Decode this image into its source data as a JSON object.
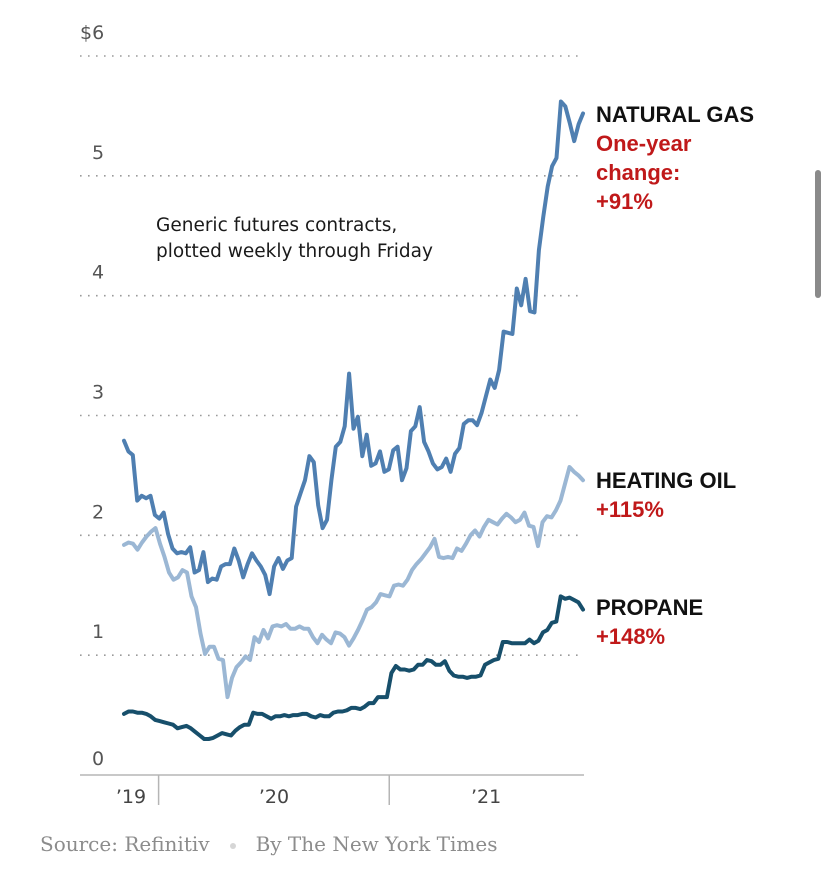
{
  "chart_data": {
    "type": "line",
    "title": "",
    "xlabel": "",
    "ylabel": "",
    "y_unit_prefix": "$",
    "ylim": [
      0,
      6
    ],
    "yticks": [
      0,
      1,
      2,
      3,
      4,
      5,
      6
    ],
    "ytick_labels": [
      "0",
      "1",
      "2",
      "3",
      "4",
      "5",
      "$6"
    ],
    "xlim": [
      2019.85,
      2021.84
    ],
    "xticks": [
      {
        "label": "’19",
        "start": 2019.85,
        "end": 2020.0
      },
      {
        "label": "’20",
        "start": 2020.0,
        "end": 2021.0
      },
      {
        "label": "’21",
        "start": 2021.0,
        "end": 2021.84
      }
    ],
    "grid": true,
    "annotation": [
      "Generic futures contracts,",
      "plotted weekly through Friday"
    ],
    "x_start": 2019.85,
    "x_step_years": 0.01923,
    "series": [
      {
        "name": "NATURAL GAS",
        "change_label": [
          "One-year",
          "change:",
          "+91%"
        ],
        "color": "#4f7fb1",
        "values": [
          2.79,
          2.7,
          2.67,
          2.29,
          2.33,
          2.31,
          2.33,
          2.17,
          2.14,
          2.19,
          2.01,
          1.89,
          1.85,
          1.86,
          1.85,
          1.9,
          1.69,
          1.71,
          1.86,
          1.61,
          1.64,
          1.63,
          1.74,
          1.76,
          1.76,
          1.89,
          1.79,
          1.65,
          1.76,
          1.85,
          1.79,
          1.74,
          1.67,
          1.51,
          1.74,
          1.81,
          1.72,
          1.79,
          1.81,
          2.24,
          2.35,
          2.46,
          2.66,
          2.61,
          2.25,
          2.06,
          2.13,
          2.46,
          2.74,
          2.78,
          2.91,
          3.35,
          2.89,
          2.99,
          2.66,
          2.84,
          2.58,
          2.6,
          2.7,
          2.53,
          2.55,
          2.71,
          2.74,
          2.46,
          2.56,
          2.87,
          2.91,
          3.07,
          2.78,
          2.7,
          2.6,
          2.55,
          2.57,
          2.64,
          2.53,
          2.68,
          2.73,
          2.93,
          2.96,
          2.96,
          2.92,
          3.02,
          3.16,
          3.3,
          3.23,
          3.38,
          3.7,
          3.69,
          3.68,
          4.06,
          3.92,
          4.14,
          3.87,
          3.86,
          4.38,
          4.66,
          4.91,
          5.08,
          5.15,
          5.62,
          5.58,
          5.44,
          5.29,
          5.43,
          5.52
        ]
      },
      {
        "name": "HEATING OIL",
        "change_label": [
          "+115%"
        ],
        "color": "#9bb7d4",
        "values": [
          1.92,
          1.94,
          1.93,
          1.88,
          1.94,
          1.99,
          2.03,
          2.06,
          1.93,
          1.82,
          1.69,
          1.63,
          1.65,
          1.71,
          1.69,
          1.49,
          1.4,
          1.18,
          1.01,
          1.07,
          1.07,
          0.97,
          0.96,
          0.65,
          0.81,
          0.9,
          0.94,
          0.99,
          0.96,
          1.15,
          1.11,
          1.21,
          1.14,
          1.24,
          1.25,
          1.24,
          1.26,
          1.22,
          1.22,
          1.24,
          1.22,
          1.22,
          1.15,
          1.1,
          1.17,
          1.13,
          1.1,
          1.19,
          1.18,
          1.15,
          1.08,
          1.14,
          1.21,
          1.29,
          1.38,
          1.4,
          1.44,
          1.51,
          1.5,
          1.49,
          1.58,
          1.59,
          1.58,
          1.63,
          1.71,
          1.76,
          1.8,
          1.85,
          1.9,
          1.97,
          1.82,
          1.81,
          1.82,
          1.81,
          1.89,
          1.87,
          1.93,
          2.0,
          2.04,
          1.99,
          2.07,
          2.13,
          2.11,
          2.09,
          2.14,
          2.18,
          2.15,
          2.11,
          2.13,
          2.19,
          2.08,
          2.07,
          1.91,
          2.11,
          2.16,
          2.15,
          2.21,
          2.29,
          2.43,
          2.57,
          2.53,
          2.5,
          2.46
        ]
      },
      {
        "name": "PROPANE",
        "change_label": [
          "+148%"
        ],
        "color": "#174f6b",
        "values": [
          0.51,
          0.53,
          0.53,
          0.52,
          0.52,
          0.51,
          0.49,
          0.46,
          0.45,
          0.44,
          0.43,
          0.42,
          0.39,
          0.4,
          0.41,
          0.39,
          0.36,
          0.33,
          0.3,
          0.3,
          0.31,
          0.33,
          0.35,
          0.34,
          0.33,
          0.37,
          0.4,
          0.42,
          0.42,
          0.52,
          0.51,
          0.51,
          0.49,
          0.47,
          0.49,
          0.49,
          0.5,
          0.49,
          0.5,
          0.5,
          0.51,
          0.51,
          0.49,
          0.48,
          0.5,
          0.49,
          0.49,
          0.52,
          0.53,
          0.53,
          0.54,
          0.56,
          0.56,
          0.55,
          0.57,
          0.6,
          0.6,
          0.65,
          0.65,
          0.65,
          0.85,
          0.91,
          0.88,
          0.88,
          0.87,
          0.88,
          0.92,
          0.92,
          0.96,
          0.95,
          0.92,
          0.92,
          0.95,
          0.87,
          0.83,
          0.82,
          0.82,
          0.81,
          0.82,
          0.82,
          0.83,
          0.92,
          0.94,
          0.96,
          0.97,
          1.11,
          1.11,
          1.1,
          1.1,
          1.1,
          1.1,
          1.13,
          1.1,
          1.12,
          1.19,
          1.21,
          1.27,
          1.28,
          1.49,
          1.47,
          1.48,
          1.46,
          1.44,
          1.38
        ]
      }
    ]
  },
  "footer": {
    "source": "Source: Refinitiv",
    "credit": "By The New York Times"
  }
}
